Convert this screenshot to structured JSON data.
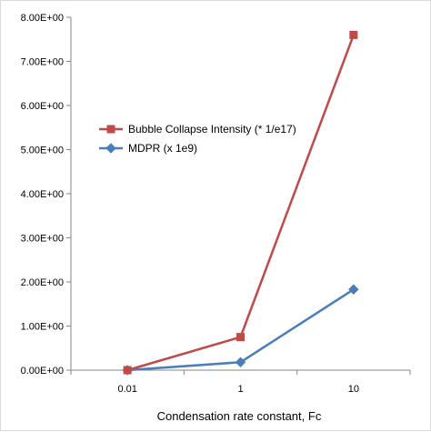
{
  "chart_data": {
    "type": "line",
    "title": "",
    "xlabel": "Condensation rate constant, Fc",
    "ylabel": "",
    "categories": [
      "0.01",
      "1",
      "10"
    ],
    "ylim": [
      0,
      8
    ],
    "yticks": [
      0,
      1,
      2,
      3,
      4,
      5,
      6,
      7,
      8
    ],
    "ytick_labels": [
      "0.00E+00",
      "1.00E+00",
      "2.00E+00",
      "3.00E+00",
      "4.00E+00",
      "5.00E+00",
      "6.00E+00",
      "7.00E+00",
      "8.00E+00"
    ],
    "grid": false,
    "legend_position": "center-left",
    "series": [
      {
        "name": "Bubble Collapse Intensity (* 1/e17)",
        "color": "#be4b48",
        "marker": "square",
        "values": [
          0,
          0.75,
          7.6
        ]
      },
      {
        "name": "MDPR (x 1e9)",
        "color": "#4a7ebb",
        "marker": "diamond",
        "values": [
          0,
          0.18,
          1.83
        ]
      }
    ]
  }
}
